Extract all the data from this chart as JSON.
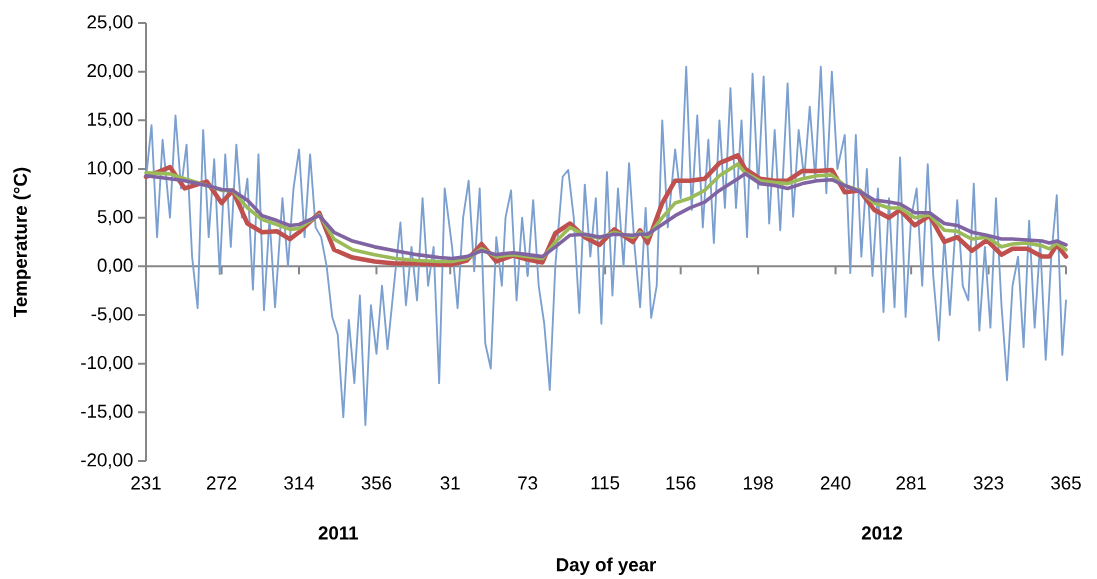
{
  "chart_data": {
    "type": "line",
    "xlabel": "Day of year",
    "ylabel": "Temperature (°C)",
    "annotations": [
      "2011",
      "2012"
    ],
    "xlim": [
      "2011-08-19",
      "2012-12-30"
    ],
    "xticks": [
      {
        "value": "2011-08-19",
        "label": "231"
      },
      {
        "value": "2011-09-29",
        "label": "272"
      },
      {
        "value": "2011-11-10",
        "label": "314"
      },
      {
        "value": "2011-12-22",
        "label": "356"
      },
      {
        "value": "2012-01-31",
        "label": "31"
      },
      {
        "value": "2012-03-13",
        "label": "73"
      },
      {
        "value": "2012-04-24",
        "label": "115"
      },
      {
        "value": "2012-06-04",
        "label": "156"
      },
      {
        "value": "2012-07-16",
        "label": "198"
      },
      {
        "value": "2012-08-27",
        "label": "240"
      },
      {
        "value": "2012-10-07",
        "label": "281"
      },
      {
        "value": "2012-11-18",
        "label": "323"
      },
      {
        "value": "2012-12-30",
        "label": "365"
      }
    ],
    "ylim": [
      -20,
      25
    ],
    "yticks": [
      {
        "value": -20,
        "label": "-20,00"
      },
      {
        "value": -15,
        "label": "-15,00"
      },
      {
        "value": -10,
        "label": "-10,00"
      },
      {
        "value": -5,
        "label": "-5,00"
      },
      {
        "value": 0,
        "label": "0,00"
      },
      {
        "value": 5,
        "label": "5,00"
      },
      {
        "value": 10,
        "label": "10,00"
      },
      {
        "value": 15,
        "label": "15,00"
      },
      {
        "value": 20,
        "label": "20,00"
      },
      {
        "value": 25,
        "label": "25,00"
      }
    ],
    "marker": "none",
    "series": [
      {
        "color": "#7ba0d0",
        "x": [
          "2011-08-19",
          "2011-08-22",
          "2011-08-25",
          "2011-08-28",
          "2011-09-01",
          "2011-09-04",
          "2011-09-07",
          "2011-09-10",
          "2011-09-13",
          "2011-09-16",
          "2011-09-19",
          "2011-09-22",
          "2011-09-25",
          "2011-09-28",
          "2011-10-01",
          "2011-10-04",
          "2011-10-07",
          "2011-10-10",
          "2011-10-13",
          "2011-10-16",
          "2011-10-19",
          "2011-10-22",
          "2011-10-25",
          "2011-10-28",
          "2011-11-01",
          "2011-11-04",
          "2011-11-07",
          "2011-11-10",
          "2011-11-13",
          "2011-11-16",
          "2011-11-19",
          "2011-11-22",
          "2011-11-25",
          "2011-11-28",
          "2011-12-01",
          "2011-12-04",
          "2011-12-07",
          "2011-12-10",
          "2011-12-13",
          "2011-12-16",
          "2011-12-19",
          "2011-12-22",
          "2011-12-25",
          "2011-12-28",
          "2012-01-01",
          "2012-01-04",
          "2012-01-07",
          "2012-01-10",
          "2012-01-13",
          "2012-01-16",
          "2012-01-19",
          "2012-01-22",
          "2012-01-25",
          "2012-01-28",
          "2012-02-01",
          "2012-02-04",
          "2012-02-07",
          "2012-02-10",
          "2012-02-13",
          "2012-02-16",
          "2012-02-19",
          "2012-02-22",
          "2012-02-25",
          "2012-02-28",
          "2012-03-01",
          "2012-03-04",
          "2012-03-07",
          "2012-03-10",
          "2012-03-13",
          "2012-03-16",
          "2012-03-19",
          "2012-03-22",
          "2012-03-25",
          "2012-03-28",
          "2012-04-01",
          "2012-04-04",
          "2012-04-07",
          "2012-04-10",
          "2012-04-13",
          "2012-04-16",
          "2012-04-19",
          "2012-04-22",
          "2012-04-25",
          "2012-04-28",
          "2012-05-01",
          "2012-05-04",
          "2012-05-07",
          "2012-05-10",
          "2012-05-13",
          "2012-05-16",
          "2012-05-19",
          "2012-05-22",
          "2012-05-25",
          "2012-05-28",
          "2012-06-01",
          "2012-06-04",
          "2012-06-07",
          "2012-06-10",
          "2012-06-13",
          "2012-06-16",
          "2012-06-19",
          "2012-06-22",
          "2012-06-25",
          "2012-06-28",
          "2012-07-01",
          "2012-07-04",
          "2012-07-07",
          "2012-07-10",
          "2012-07-13",
          "2012-07-16",
          "2012-07-19",
          "2012-07-22",
          "2012-07-25",
          "2012-07-28",
          "2012-08-01",
          "2012-08-04",
          "2012-08-07",
          "2012-08-10",
          "2012-08-13",
          "2012-08-16",
          "2012-08-19",
          "2012-08-22",
          "2012-08-25",
          "2012-08-28",
          "2012-09-01",
          "2012-09-04",
          "2012-09-07",
          "2012-09-10",
          "2012-09-13",
          "2012-09-16",
          "2012-09-19",
          "2012-09-22",
          "2012-09-25",
          "2012-09-28",
          "2012-10-01",
          "2012-10-04",
          "2012-10-07",
          "2012-10-10",
          "2012-10-13",
          "2012-10-16",
          "2012-10-19",
          "2012-10-22",
          "2012-10-25",
          "2012-10-28",
          "2012-11-01",
          "2012-11-04",
          "2012-11-07",
          "2012-11-10",
          "2012-11-13",
          "2012-11-16",
          "2012-11-19",
          "2012-11-22",
          "2012-11-25",
          "2012-11-28",
          "2012-12-01",
          "2012-12-04",
          "2012-12-07",
          "2012-12-10",
          "2012-12-13",
          "2012-12-16",
          "2012-12-19",
          "2012-12-22",
          "2012-12-25",
          "2012-12-28",
          "2012-12-30"
        ],
        "values": [
          9,
          14.5,
          3,
          13,
          5,
          15.5,
          8,
          12.5,
          1,
          -4.3,
          14,
          3,
          11,
          -0.8,
          11.5,
          2,
          12.5,
          5,
          9,
          -2.4,
          11.5,
          -4.5,
          5,
          -4.2,
          7,
          0,
          8,
          12,
          3,
          11.5,
          4,
          3,
          0,
          -5.2,
          -7,
          -15.5,
          -5.5,
          -12,
          -3,
          -16.3,
          -4,
          -9,
          -2,
          -8.5,
          -1,
          4.5,
          -4,
          2,
          -3.5,
          7,
          -2,
          2,
          -12,
          8,
          2,
          -4.3,
          5,
          8.8,
          -0.5,
          8,
          -7.9,
          -10.5,
          3,
          -2,
          5,
          7.8,
          -3.5,
          5,
          -1,
          6.8,
          -2,
          -5.9,
          -12.7,
          0,
          9.2,
          9.9,
          5,
          -4.8,
          8.4,
          1,
          7,
          -5.9,
          9.7,
          -3,
          8,
          0,
          10.6,
          2,
          -4.2,
          6,
          -5.3,
          -2,
          15,
          4,
          12,
          7,
          20.5,
          5.8,
          15.5,
          4,
          13,
          2.4,
          15,
          6,
          18.3,
          6,
          15,
          3,
          19.8,
          8,
          19.5,
          4.4,
          14,
          3.7,
          18.8,
          5.1,
          14,
          9,
          16.4,
          9,
          20.5,
          7.5,
          20,
          10,
          13.5,
          -0.7,
          13.5,
          1,
          10,
          -1,
          8,
          -4.7,
          7,
          -4.2,
          11.2,
          -5.2,
          5,
          8,
          -2,
          10.5,
          -1,
          -7.6,
          3,
          -5,
          6.8,
          -2,
          -3.5,
          8.5,
          -6.6,
          2,
          -6.3,
          7,
          -4,
          -11.7,
          -2,
          1,
          -8.3,
          4.7,
          -6.3,
          2.5,
          -9.6,
          1,
          7.3,
          -9.1,
          -3.5
        ]
      },
      {
        "color": "#c0504d",
        "x": [
          "2011-08-19",
          "2011-09-01",
          "2011-09-09",
          "2011-09-21",
          "2011-09-29",
          "2011-10-05",
          "2011-10-13",
          "2011-10-21",
          "2011-10-29",
          "2011-11-05",
          "2011-11-10",
          "2011-11-21",
          "2011-11-29",
          "2011-12-09",
          "2011-12-21",
          "2012-01-01",
          "2012-01-13",
          "2012-01-25",
          "2012-02-01",
          "2012-02-09",
          "2012-02-17",
          "2012-02-25",
          "2012-03-05",
          "2012-03-13",
          "2012-03-21",
          "2012-03-28",
          "2012-04-05",
          "2012-04-13",
          "2012-04-21",
          "2012-04-29",
          "2012-05-09",
          "2012-05-13",
          "2012-05-17",
          "2012-05-25",
          "2012-06-01",
          "2012-06-09",
          "2012-06-17",
          "2012-06-25",
          "2012-07-05",
          "2012-07-09",
          "2012-07-17",
          "2012-07-25",
          "2012-08-01",
          "2012-08-09",
          "2012-08-17",
          "2012-08-25",
          "2012-09-01",
          "2012-09-09",
          "2012-09-17",
          "2012-09-25",
          "2012-10-01",
          "2012-10-09",
          "2012-10-17",
          "2012-10-25",
          "2012-11-01",
          "2012-11-09",
          "2012-11-17",
          "2012-11-25",
          "2012-12-01",
          "2012-12-09",
          "2012-12-17",
          "2012-12-21",
          "2012-12-25",
          "2012-12-30"
        ],
        "values": [
          9.2,
          10.2,
          8,
          8.7,
          6.5,
          7.8,
          4.4,
          3.5,
          3.6,
          2.8,
          3.5,
          5.5,
          1.7,
          0.9,
          0.5,
          0.3,
          0.3,
          0.2,
          0.2,
          0.6,
          2.3,
          0.5,
          1.1,
          0.7,
          0.4,
          3.4,
          4.4,
          3.0,
          2.2,
          3.8,
          2.5,
          3.7,
          2.4,
          6.5,
          8.8,
          8.8,
          9.0,
          10.6,
          11.4,
          10,
          9.0,
          8.8,
          8.8,
          9.8,
          9.8,
          9.9,
          7.6,
          7.8,
          5.8,
          5.0,
          5.8,
          4.2,
          5.2,
          2.5,
          3.0,
          1.6,
          2.7,
          1.2,
          1.8,
          1.8,
          1.0,
          1.0,
          2.2,
          1.0
        ]
      },
      {
        "color": "#9bbb59",
        "x": [
          "2011-08-19",
          "2011-09-01",
          "2011-09-09",
          "2011-09-21",
          "2011-09-29",
          "2011-10-05",
          "2011-10-13",
          "2011-10-21",
          "2011-10-29",
          "2011-11-05",
          "2011-11-10",
          "2011-11-21",
          "2011-11-29",
          "2011-12-09",
          "2011-12-21",
          "2012-01-01",
          "2012-01-13",
          "2012-01-25",
          "2012-02-01",
          "2012-02-09",
          "2012-02-17",
          "2012-02-25",
          "2012-03-05",
          "2012-03-13",
          "2012-03-21",
          "2012-03-28",
          "2012-04-05",
          "2012-04-13",
          "2012-04-21",
          "2012-04-29",
          "2012-05-09",
          "2012-05-13",
          "2012-05-17",
          "2012-05-25",
          "2012-06-01",
          "2012-06-09",
          "2012-06-17",
          "2012-06-25",
          "2012-07-05",
          "2012-07-09",
          "2012-07-17",
          "2012-07-25",
          "2012-08-01",
          "2012-08-09",
          "2012-08-17",
          "2012-08-25",
          "2012-09-01",
          "2012-09-09",
          "2012-09-17",
          "2012-09-25",
          "2012-10-01",
          "2012-10-09",
          "2012-10-17",
          "2012-10-25",
          "2012-11-01",
          "2012-11-09",
          "2012-11-17",
          "2012-11-25",
          "2012-12-01",
          "2012-12-09",
          "2012-12-17",
          "2012-12-21",
          "2012-12-25",
          "2012-12-30"
        ],
        "values": [
          9.6,
          9.5,
          9,
          8.3,
          7.8,
          7.8,
          6,
          4.8,
          4.3,
          3.8,
          3.9,
          5.3,
          2.8,
          1.7,
          1.2,
          0.8,
          0.6,
          0.5,
          0.5,
          0.8,
          1.8,
          1.0,
          1.2,
          1.0,
          0.8,
          2.5,
          4.0,
          3.2,
          2.9,
          3.5,
          3.0,
          3.5,
          3.0,
          5.0,
          6.5,
          7.0,
          7.8,
          9.3,
          10.5,
          9.6,
          8.8,
          8.6,
          8.5,
          9.0,
          9.3,
          9.4,
          8.3,
          7.8,
          6.5,
          6.0,
          6.0,
          5.0,
          5.3,
          3.7,
          3.6,
          2.8,
          3.0,
          2.0,
          2.3,
          2.4,
          2.1,
          1.8,
          2.4,
          1.7
        ]
      },
      {
        "color": "#8064a2",
        "x": [
          "2011-08-19",
          "2011-09-01",
          "2011-09-09",
          "2011-09-21",
          "2011-09-29",
          "2011-10-05",
          "2011-10-13",
          "2011-10-21",
          "2011-10-29",
          "2011-11-05",
          "2011-11-10",
          "2011-11-21",
          "2011-11-29",
          "2011-12-09",
          "2011-12-21",
          "2012-01-01",
          "2012-01-13",
          "2012-01-25",
          "2012-02-01",
          "2012-02-09",
          "2012-02-17",
          "2012-02-25",
          "2012-03-05",
          "2012-03-13",
          "2012-03-21",
          "2012-03-28",
          "2012-04-05",
          "2012-04-13",
          "2012-04-21",
          "2012-04-29",
          "2012-05-09",
          "2012-05-13",
          "2012-05-17",
          "2012-05-25",
          "2012-06-01",
          "2012-06-09",
          "2012-06-17",
          "2012-06-25",
          "2012-07-05",
          "2012-07-09",
          "2012-07-17",
          "2012-07-25",
          "2012-08-01",
          "2012-08-09",
          "2012-08-17",
          "2012-08-25",
          "2012-09-01",
          "2012-09-09",
          "2012-09-17",
          "2012-09-25",
          "2012-10-01",
          "2012-10-09",
          "2012-10-17",
          "2012-10-25",
          "2012-11-01",
          "2012-11-09",
          "2012-11-17",
          "2012-11-25",
          "2012-12-01",
          "2012-12-09",
          "2012-12-17",
          "2012-12-21",
          "2012-12-25",
          "2012-12-30"
        ],
        "values": [
          9.3,
          9.0,
          8.8,
          8.3,
          7.9,
          7.8,
          6.8,
          5.2,
          4.7,
          4.2,
          4.3,
          5.2,
          3.5,
          2.6,
          2.0,
          1.6,
          1.2,
          0.9,
          0.8,
          1.0,
          1.6,
          1.2,
          1.4,
          1.2,
          1.0,
          2.0,
          3.2,
          3.3,
          3.0,
          3.3,
          3.2,
          3.3,
          3.3,
          4.3,
          5.2,
          6.0,
          6.6,
          7.8,
          9.0,
          9.5,
          8.5,
          8.3,
          8.0,
          8.5,
          8.8,
          8.9,
          8.3,
          7.7,
          6.8,
          6.6,
          6.4,
          5.5,
          5.5,
          4.4,
          4.2,
          3.5,
          3.2,
          2.8,
          2.8,
          2.7,
          2.6,
          2.4,
          2.6,
          2.2
        ]
      }
    ]
  }
}
